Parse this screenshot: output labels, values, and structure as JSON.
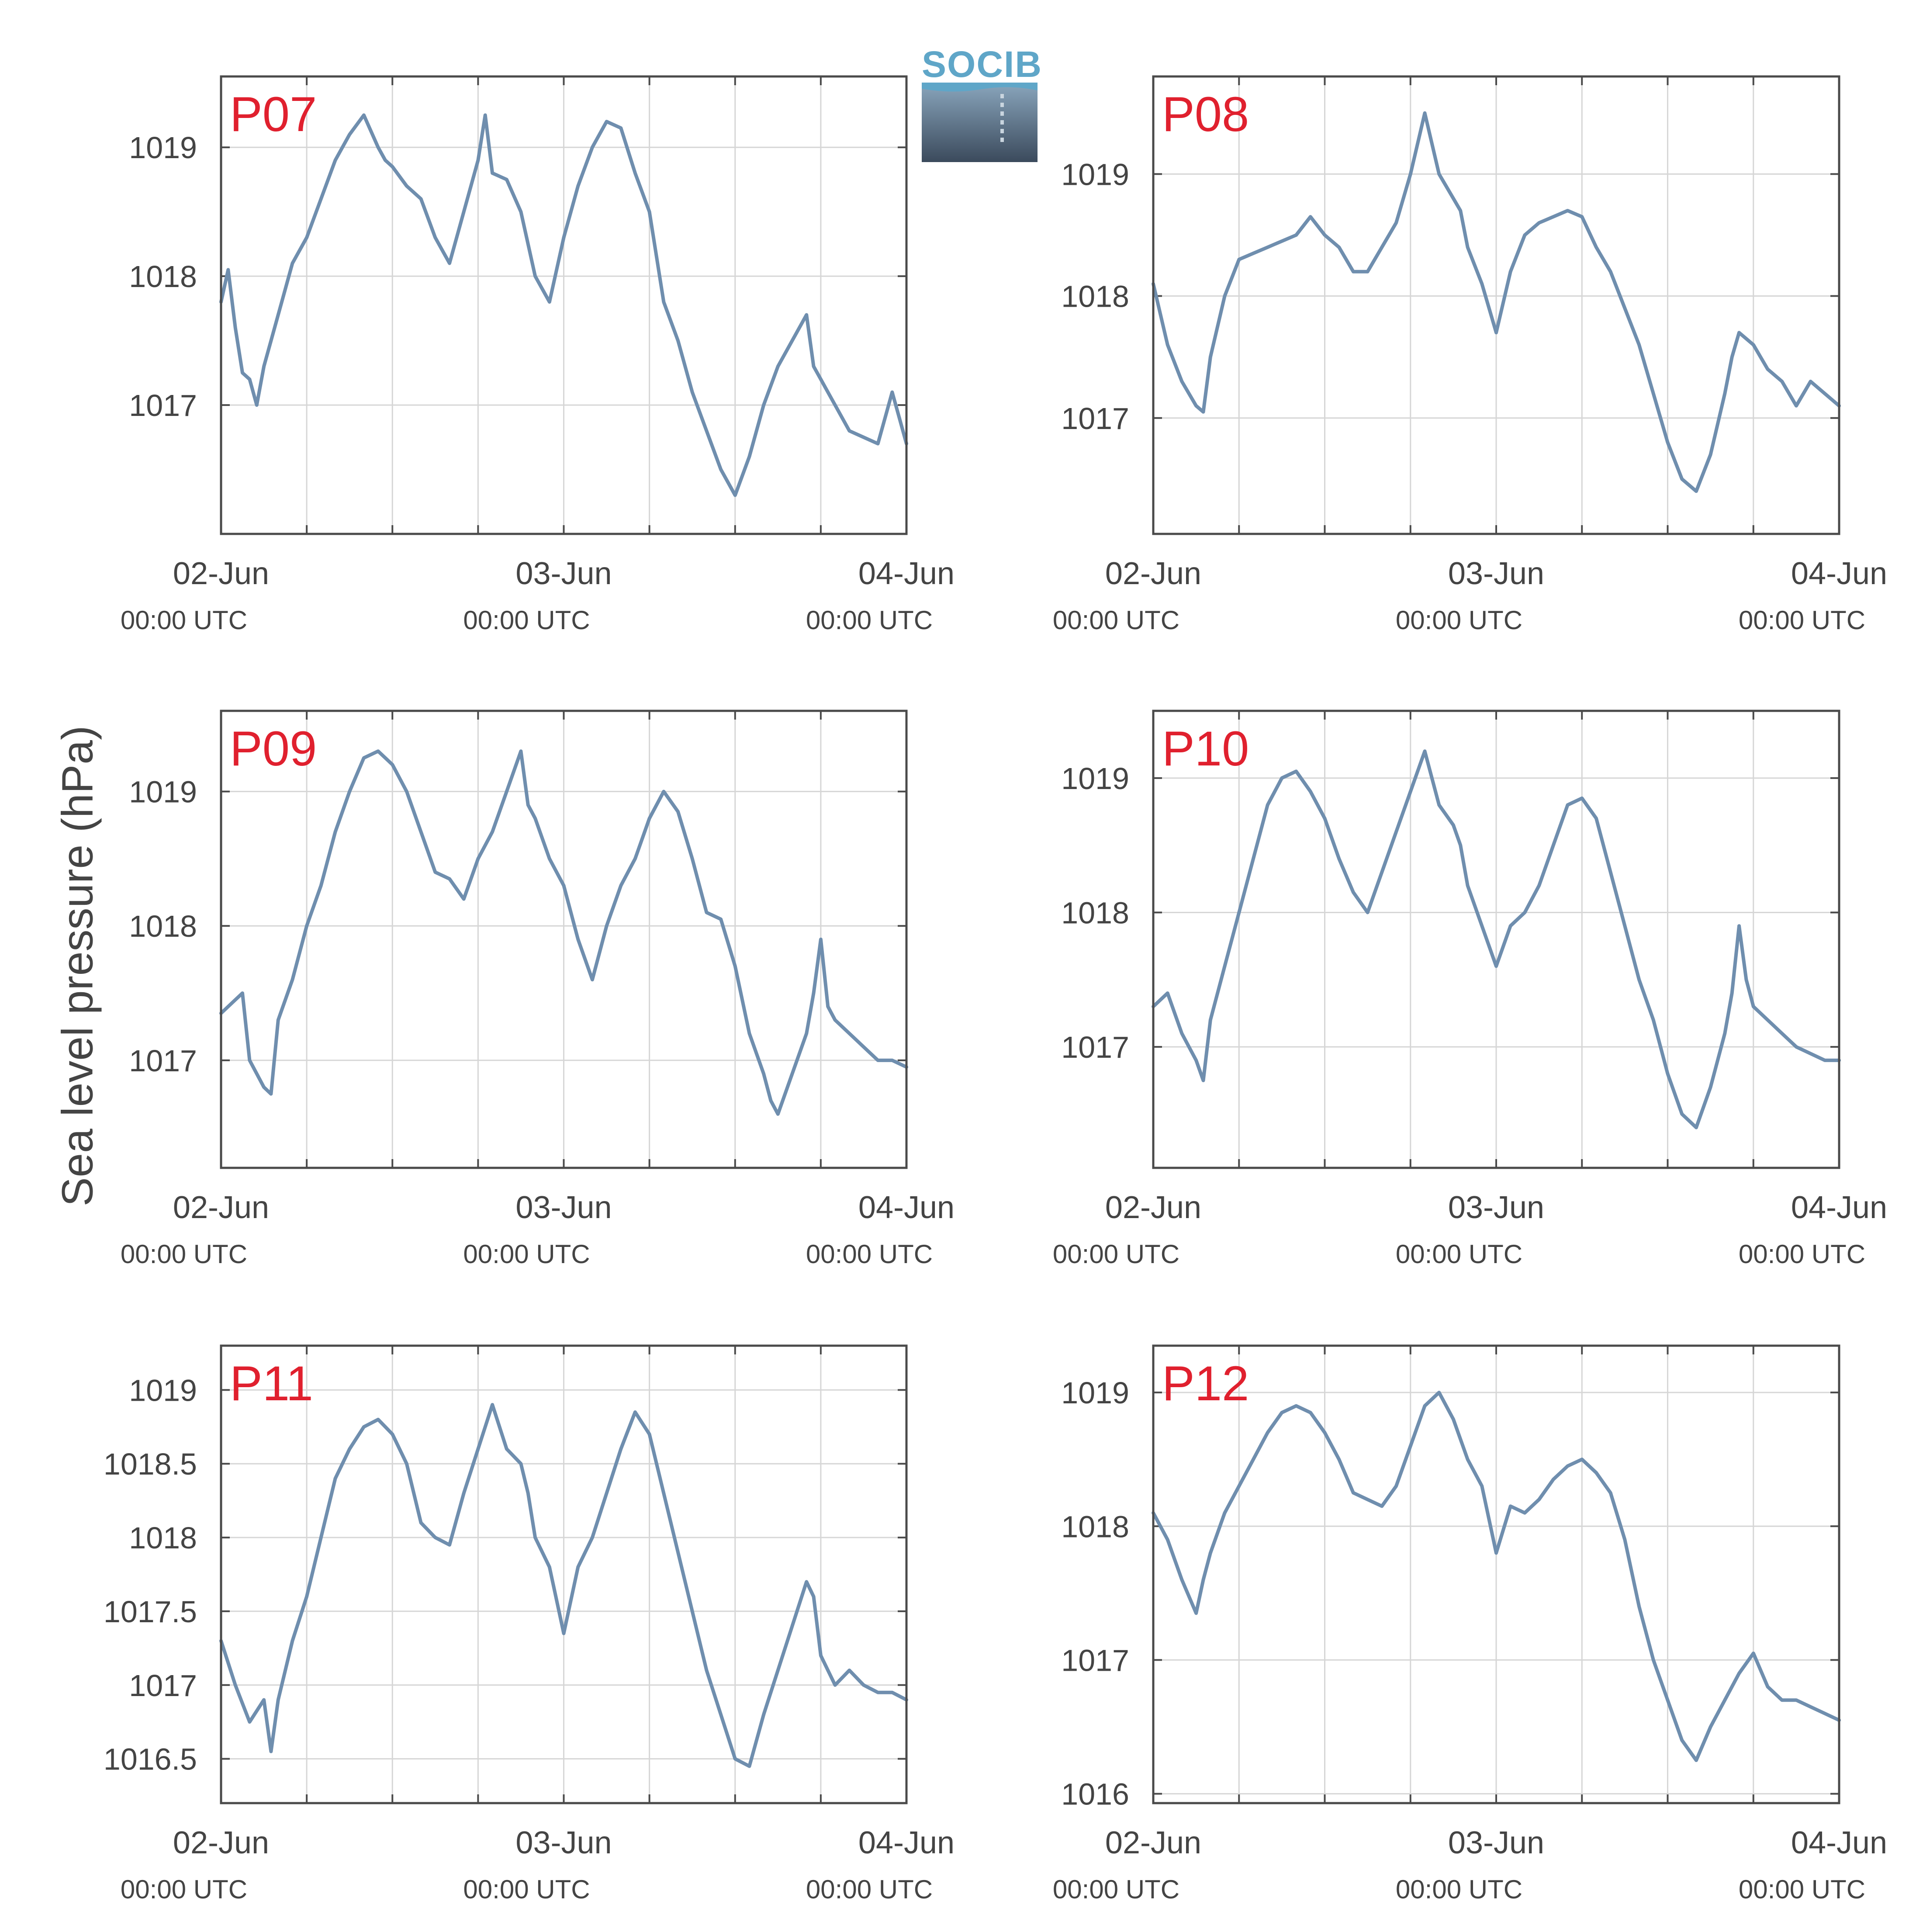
{
  "ylabel": "Sea level pressure (hPa)",
  "logo_text": "SOCIB",
  "colors": {
    "line": "#6f8eae",
    "station_label": "#e0202e",
    "axis": "#4a4a4a",
    "grid": "#d6d6d6",
    "text": "#444444"
  },
  "chart_data": [
    {
      "type": "line",
      "title": "P07",
      "x_ticks": [
        {
          "date": "02-Jun",
          "time": "00:00 UTC"
        },
        {
          "date": "03-Jun",
          "time": "00:00 UTC"
        },
        {
          "date": "04-Jun",
          "time": "00:00 UTC"
        }
      ],
      "xlim": [
        0,
        48
      ],
      "ylim": [
        1016.0,
        1019.55
      ],
      "yticks": [
        1017,
        1018,
        1019
      ],
      "ytick_labels": [
        "1017",
        "1018",
        "1019"
      ],
      "x": [
        0,
        0.5,
        1,
        1.5,
        2,
        2.5,
        3,
        4,
        5,
        6,
        7,
        8,
        9,
        10,
        11,
        11.5,
        12,
        13,
        14,
        15,
        16,
        17,
        18,
        18.5,
        19,
        20,
        21,
        22,
        23,
        24,
        25,
        26,
        26.5,
        27,
        28,
        29,
        30,
        31,
        32,
        33,
        34,
        35,
        36,
        37,
        38,
        39,
        40,
        41,
        41.5,
        42,
        42.5,
        43,
        44,
        45,
        46,
        46.5,
        47,
        47.5,
        48
      ],
      "y": [
        1017.8,
        1018.05,
        1017.6,
        1017.25,
        1017.2,
        1017.0,
        1017.3,
        1017.7,
        1018.1,
        1018.3,
        1018.6,
        1018.9,
        1019.1,
        1019.25,
        1019.0,
        1018.9,
        1018.85,
        1018.7,
        1018.6,
        1018.3,
        1018.1,
        1018.5,
        1018.9,
        1019.25,
        1018.8,
        1018.75,
        1018.5,
        1018.0,
        1017.8,
        1018.3,
        1018.7,
        1019.0,
        1019.1,
        1019.2,
        1019.15,
        1018.8,
        1018.5,
        1017.8,
        1017.5,
        1017.1,
        1016.8,
        1016.5,
        1016.3,
        1016.6,
        1017.0,
        1017.3,
        1017.5,
        1017.7,
        1017.3,
        1017.2,
        1017.1,
        1017.0,
        1016.8,
        1016.75,
        1016.7,
        1016.9,
        1017.1,
        1016.9,
        1016.7
      ]
    },
    {
      "type": "line",
      "title": "P08",
      "x_ticks": [
        {
          "date": "02-Jun",
          "time": "00:00 UTC"
        },
        {
          "date": "03-Jun",
          "time": "00:00 UTC"
        },
        {
          "date": "04-Jun",
          "time": "00:00 UTC"
        }
      ],
      "xlim": [
        0,
        48
      ],
      "ylim": [
        1016.05,
        1019.8
      ],
      "yticks": [
        1017,
        1018,
        1019
      ],
      "ytick_labels": [
        "1017",
        "1018",
        "1019"
      ],
      "x": [
        0,
        1,
        2,
        3,
        3.5,
        4,
        5,
        6,
        7,
        8,
        9,
        10,
        11,
        12,
        13,
        14,
        15,
        16,
        17,
        18,
        19,
        20,
        21,
        21.5,
        22,
        23,
        24,
        25,
        26,
        27,
        28,
        29,
        30,
        31,
        32,
        33,
        34,
        35,
        36,
        37,
        38,
        39,
        40,
        40.5,
        41,
        42,
        43,
        44,
        44.5,
        45,
        46,
        47,
        48
      ],
      "y": [
        1018.1,
        1017.6,
        1017.3,
        1017.1,
        1017.05,
        1017.5,
        1018.0,
        1018.3,
        1018.35,
        1018.4,
        1018.45,
        1018.5,
        1018.65,
        1018.5,
        1018.4,
        1018.2,
        1018.2,
        1018.4,
        1018.6,
        1019.0,
        1019.5,
        1019.0,
        1018.8,
        1018.7,
        1018.4,
        1018.1,
        1017.7,
        1018.2,
        1018.5,
        1018.6,
        1018.65,
        1018.7,
        1018.65,
        1018.4,
        1018.2,
        1017.9,
        1017.6,
        1017.2,
        1016.8,
        1016.5,
        1016.4,
        1016.7,
        1017.2,
        1017.5,
        1017.7,
        1017.6,
        1017.4,
        1017.3,
        1017.2,
        1017.1,
        1017.3,
        1017.2,
        1017.1
      ]
    },
    {
      "type": "line",
      "title": "P09",
      "x_ticks": [
        {
          "date": "02-Jun",
          "time": "00:00 UTC"
        },
        {
          "date": "03-Jun",
          "time": "00:00 UTC"
        },
        {
          "date": "04-Jun",
          "time": "00:00 UTC"
        }
      ],
      "xlim": [
        0,
        48
      ],
      "ylim": [
        1016.2,
        1019.6
      ],
      "yticks": [
        1017,
        1018,
        1019
      ],
      "ytick_labels": [
        "1017",
        "1018",
        "1019"
      ],
      "x": [
        0,
        1,
        1.5,
        2,
        3,
        3.5,
        4,
        5,
        6,
        7,
        8,
        9,
        10,
        11,
        12,
        13,
        14,
        15,
        16,
        17,
        18,
        19,
        20,
        21,
        21.5,
        22,
        23,
        24,
        25,
        26,
        27,
        28,
        29,
        30,
        31,
        32,
        33,
        34,
        35,
        36,
        37,
        38,
        38.5,
        39,
        40,
        41,
        41.5,
        42,
        42.5,
        43,
        44,
        45,
        46,
        47,
        48
      ],
      "y": [
        1017.35,
        1017.45,
        1017.5,
        1017.0,
        1016.8,
        1016.75,
        1017.3,
        1017.6,
        1018.0,
        1018.3,
        1018.7,
        1019.0,
        1019.25,
        1019.3,
        1019.2,
        1019.0,
        1018.7,
        1018.4,
        1018.35,
        1018.2,
        1018.5,
        1018.7,
        1019.0,
        1019.3,
        1018.9,
        1018.8,
        1018.5,
        1018.3,
        1017.9,
        1017.6,
        1018.0,
        1018.3,
        1018.5,
        1018.8,
        1019.0,
        1018.85,
        1018.5,
        1018.1,
        1018.05,
        1017.7,
        1017.2,
        1016.9,
        1016.7,
        1016.6,
        1016.9,
        1017.2,
        1017.5,
        1017.9,
        1017.4,
        1017.3,
        1017.2,
        1017.1,
        1017.0,
        1017.0,
        1016.95
      ]
    },
    {
      "type": "line",
      "title": "P10",
      "x_ticks": [
        {
          "date": "02-Jun",
          "time": "00:00 UTC"
        },
        {
          "date": "03-Jun",
          "time": "00:00 UTC"
        },
        {
          "date": "04-Jun",
          "time": "00:00 UTC"
        }
      ],
      "xlim": [
        0,
        48
      ],
      "ylim": [
        1016.1,
        1019.5
      ],
      "yticks": [
        1017,
        1018,
        1019
      ],
      "ytick_labels": [
        "1017",
        "1018",
        "1019"
      ],
      "x": [
        0,
        1,
        2,
        3,
        3.5,
        4,
        5,
        6,
        7,
        8,
        9,
        10,
        11,
        12,
        13,
        14,
        15,
        16,
        17,
        18,
        19,
        20,
        21,
        21.5,
        22,
        23,
        24,
        25,
        26,
        27,
        28,
        29,
        30,
        31,
        32,
        33,
        34,
        35,
        36,
        37,
        38,
        39,
        40,
        40.5,
        41,
        41.5,
        42,
        43,
        44,
        45,
        46,
        47,
        48
      ],
      "y": [
        1017.3,
        1017.4,
        1017.1,
        1016.9,
        1016.75,
        1017.2,
        1017.6,
        1018.0,
        1018.4,
        1018.8,
        1019.0,
        1019.05,
        1018.9,
        1018.7,
        1018.4,
        1018.15,
        1018.0,
        1018.3,
        1018.6,
        1018.9,
        1019.2,
        1018.8,
        1018.65,
        1018.5,
        1018.2,
        1017.9,
        1017.6,
        1017.9,
        1018.0,
        1018.2,
        1018.5,
        1018.8,
        1018.85,
        1018.7,
        1018.3,
        1017.9,
        1017.5,
        1017.2,
        1016.8,
        1016.5,
        1016.4,
        1016.7,
        1017.1,
        1017.4,
        1017.9,
        1017.5,
        1017.3,
        1017.2,
        1017.1,
        1017.0,
        1016.95,
        1016.9,
        1016.9
      ]
    },
    {
      "type": "line",
      "title": "P11",
      "x_ticks": [
        {
          "date": "02-Jun",
          "time": "00:00 UTC"
        },
        {
          "date": "03-Jun",
          "time": "00:00 UTC"
        },
        {
          "date": "04-Jun",
          "time": "00:00 UTC"
        }
      ],
      "xlim": [
        0,
        48
      ],
      "ylim": [
        1016.2,
        1019.3
      ],
      "yticks": [
        1016.5,
        1017,
        1017.5,
        1018,
        1018.5,
        1019
      ],
      "ytick_labels": [
        "1016.5",
        "1017",
        "1017.5",
        "1018",
        "1018.5",
        "1019"
      ],
      "x": [
        0,
        1,
        2,
        3,
        3.5,
        4,
        5,
        6,
        7,
        8,
        9,
        10,
        11,
        12,
        13,
        14,
        15,
        16,
        17,
        18,
        19,
        20,
        21,
        21.5,
        22,
        23,
        24,
        25,
        26,
        27,
        28,
        29,
        30,
        31,
        32,
        33,
        34,
        35,
        36,
        37,
        38,
        39,
        40,
        41,
        41.5,
        42,
        42.5,
        43,
        44,
        45,
        46,
        47,
        48
      ],
      "y": [
        1017.3,
        1017.0,
        1016.75,
        1016.9,
        1016.55,
        1016.9,
        1017.3,
        1017.6,
        1018.0,
        1018.4,
        1018.6,
        1018.75,
        1018.8,
        1018.7,
        1018.5,
        1018.1,
        1018.0,
        1017.95,
        1018.3,
        1018.6,
        1018.9,
        1018.6,
        1018.5,
        1018.3,
        1018.0,
        1017.8,
        1017.35,
        1017.8,
        1018.0,
        1018.3,
        1018.6,
        1018.85,
        1018.7,
        1018.3,
        1017.9,
        1017.5,
        1017.1,
        1016.8,
        1016.5,
        1016.45,
        1016.8,
        1017.1,
        1017.4,
        1017.7,
        1017.6,
        1017.2,
        1017.1,
        1017.0,
        1017.1,
        1017.0,
        1016.95,
        1016.95,
        1016.9
      ]
    },
    {
      "type": "line",
      "title": "P12",
      "x_ticks": [
        {
          "date": "02-Jun",
          "time": "00:00 UTC"
        },
        {
          "date": "03-Jun",
          "time": "00:00 UTC"
        },
        {
          "date": "04-Jun",
          "time": "00:00 UTC"
        }
      ],
      "xlim": [
        0,
        48
      ],
      "ylim": [
        1015.93,
        1019.35
      ],
      "yticks": [
        1016,
        1017,
        1018,
        1019
      ],
      "ytick_labels": [
        "1016",
        "1017",
        "1018",
        "1019"
      ],
      "x": [
        0,
        1,
        2,
        3,
        3.5,
        4,
        5,
        6,
        7,
        8,
        9,
        10,
        11,
        12,
        13,
        14,
        15,
        16,
        17,
        18,
        19,
        20,
        21,
        22,
        23,
        24,
        25,
        26,
        27,
        28,
        29,
        30,
        31,
        32,
        33,
        34,
        35,
        36,
        37,
        38,
        39,
        40,
        41,
        42,
        43,
        44,
        45,
        46,
        47,
        48
      ],
      "y": [
        1018.1,
        1017.9,
        1017.6,
        1017.35,
        1017.6,
        1017.8,
        1018.1,
        1018.3,
        1018.5,
        1018.7,
        1018.85,
        1018.9,
        1018.85,
        1018.7,
        1018.5,
        1018.25,
        1018.2,
        1018.15,
        1018.3,
        1018.6,
        1018.9,
        1019.0,
        1018.8,
        1018.5,
        1018.3,
        1017.8,
        1018.15,
        1018.1,
        1018.2,
        1018.35,
        1018.45,
        1018.5,
        1018.4,
        1018.25,
        1017.9,
        1017.4,
        1017.0,
        1016.7,
        1016.4,
        1016.25,
        1016.5,
        1016.7,
        1016.9,
        1017.05,
        1016.8,
        1016.7,
        1016.7,
        1016.65,
        1016.6,
        1016.55
      ]
    }
  ]
}
